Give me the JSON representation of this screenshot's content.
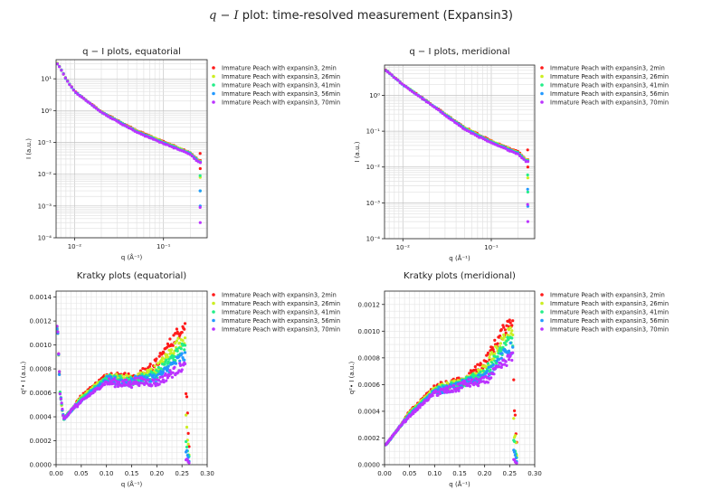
{
  "figure": {
    "title_prefix": "q − I",
    "title_rest": " plot: time-resolved measurement (Expansin3)"
  },
  "series_legend": [
    {
      "name": "Immature Peach with expansin3, 2min",
      "color": "#ff1a1a"
    },
    {
      "name": "Immature Peach with expansin3, 26min",
      "color": "#ccee22"
    },
    {
      "name": "Immature Peach with expansin3, 41min",
      "color": "#22ee88"
    },
    {
      "name": "Immature Peach with expansin3, 56min",
      "color": "#2299ff"
    },
    {
      "name": "Immature Peach with expansin3, 70min",
      "color": "#bb33ff"
    }
  ],
  "chart_data": [
    {
      "type": "scatter",
      "title": "q − I plots, equatorial",
      "xlabel": "q (Å⁻¹)",
      "ylabel": "I (a.u.)",
      "xscale": "log",
      "yscale": "log",
      "xlim": [
        0.0062,
        0.31
      ],
      "ylim": [
        0.0001,
        40
      ],
      "xticks": [
        0.01,
        0.1
      ],
      "xtick_labels": [
        "10⁻²",
        "10⁻¹"
      ],
      "yticks": [
        0.0001,
        0.001,
        0.01,
        0.1,
        1,
        10
      ],
      "ytick_labels": [
        "10⁻⁴",
        "10⁻³",
        "10⁻²",
        "10⁻¹",
        "10⁰",
        "10¹"
      ],
      "grid": true,
      "legend": "outside-right",
      "series_model": {
        "description": "power-law decay",
        "points": [
          [
            0.0065,
            30
          ],
          [
            0.008,
            10
          ],
          [
            0.01,
            4
          ],
          [
            0.02,
            0.9
          ],
          [
            0.05,
            0.22
          ],
          [
            0.1,
            0.1
          ],
          [
            0.2,
            0.045
          ],
          [
            0.25,
            0.025
          ]
        ],
        "cutoff_values": [
          0.015,
          0.008,
          0.003,
          0.001,
          0.0003
        ]
      }
    },
    {
      "type": "scatter",
      "title": "q − I plots, meridional",
      "xlabel": "q (Å⁻¹)",
      "ylabel": "I (a.u.)",
      "xscale": "log",
      "yscale": "log",
      "xlim": [
        0.0062,
        0.31
      ],
      "ylim": [
        0.0001,
        7
      ],
      "xticks": [
        0.01,
        0.1
      ],
      "xtick_labels": [
        "10⁻²",
        "10⁻¹"
      ],
      "yticks": [
        0.0001,
        0.001,
        0.01,
        0.1,
        1
      ],
      "ytick_labels": [
        "10⁻⁴",
        "10⁻³",
        "10⁻²",
        "10⁻¹",
        "10⁰"
      ],
      "grid": true,
      "legend": "outside-right",
      "series_model": {
        "description": "power-law decay",
        "points": [
          [
            0.0065,
            5
          ],
          [
            0.01,
            2
          ],
          [
            0.02,
            0.6
          ],
          [
            0.05,
            0.12
          ],
          [
            0.1,
            0.05
          ],
          [
            0.2,
            0.025
          ],
          [
            0.25,
            0.015
          ]
        ],
        "cutoff_values": [
          0.01,
          0.005,
          0.002,
          0.0008,
          0.0003
        ]
      }
    },
    {
      "type": "scatter",
      "title": "Kratky plots (equatorial)",
      "xlabel": "q (Å⁻¹)",
      "ylabel": "q²• I (a.u.)",
      "xscale": "linear",
      "yscale": "linear",
      "xlim": [
        0,
        0.3
      ],
      "ylim": [
        0,
        0.00145
      ],
      "xticks": [
        0,
        0.05,
        0.1,
        0.15,
        0.2,
        0.25,
        0.3
      ],
      "xtick_labels": [
        "0.00",
        "0.05",
        "0.10",
        "0.15",
        "0.20",
        "0.25",
        "0.30"
      ],
      "yticks": [
        0,
        0.0002,
        0.0004,
        0.0006,
        0.0008,
        0.001,
        0.0012,
        0.0014
      ],
      "ytick_labels": [
        "0.0000",
        "0.0002",
        "0.0004",
        "0.0006",
        "0.0008",
        "0.0010",
        "0.0012",
        "0.0014"
      ],
      "grid": true,
      "legend": "outside-right",
      "series_model": {
        "description": "dip then hump then rise",
        "points": [
          [
            0.003,
            0.00115
          ],
          [
            0.008,
            0.0006
          ],
          [
            0.015,
            0.00038
          ],
          [
            0.05,
            0.00055
          ],
          [
            0.1,
            0.00072
          ],
          [
            0.15,
            0.0007
          ],
          [
            0.2,
            0.0008
          ],
          [
            0.25,
            0.00105
          ]
        ],
        "series_end_values": [
          0.00115,
          0.00105,
          0.00097,
          0.0009,
          0.00082
        ],
        "cutoff_values": [
          0.00065,
          0.00035,
          0.00022,
          0.00012,
          5e-05
        ]
      }
    },
    {
      "type": "scatter",
      "title": "Kratky plots (meridional)",
      "xlabel": "q (Å⁻¹)",
      "ylabel": "q²• I (a.u.)",
      "xscale": "linear",
      "yscale": "linear",
      "xlim": [
        0,
        0.3
      ],
      "ylim": [
        0,
        0.0013
      ],
      "xticks": [
        0,
        0.05,
        0.1,
        0.15,
        0.2,
        0.25,
        0.3
      ],
      "xtick_labels": [
        "0.00",
        "0.05",
        "0.10",
        "0.15",
        "0.20",
        "0.25",
        "0.30"
      ],
      "yticks": [
        0,
        0.0002,
        0.0004,
        0.0006,
        0.0008,
        0.001,
        0.0012
      ],
      "ytick_labels": [
        "0.0000",
        "0.0002",
        "0.0004",
        "0.0006",
        "0.0008",
        "0.0010",
        "0.0012"
      ],
      "grid": true,
      "legend": "outside-right",
      "series_model": {
        "description": "linear rise, plateau, then rise",
        "points": [
          [
            0.003,
            0.00015
          ],
          [
            0.05,
            0.00038
          ],
          [
            0.1,
            0.00056
          ],
          [
            0.15,
            0.0006
          ],
          [
            0.2,
            0.00075
          ],
          [
            0.25,
            0.00105
          ]
        ],
        "series_end_values": [
          0.00108,
          0.001,
          0.00093,
          0.00087,
          0.0008
        ],
        "cutoff_values": [
          0.00055,
          0.0003,
          0.00018,
          0.0001,
          4e-05
        ]
      }
    }
  ]
}
